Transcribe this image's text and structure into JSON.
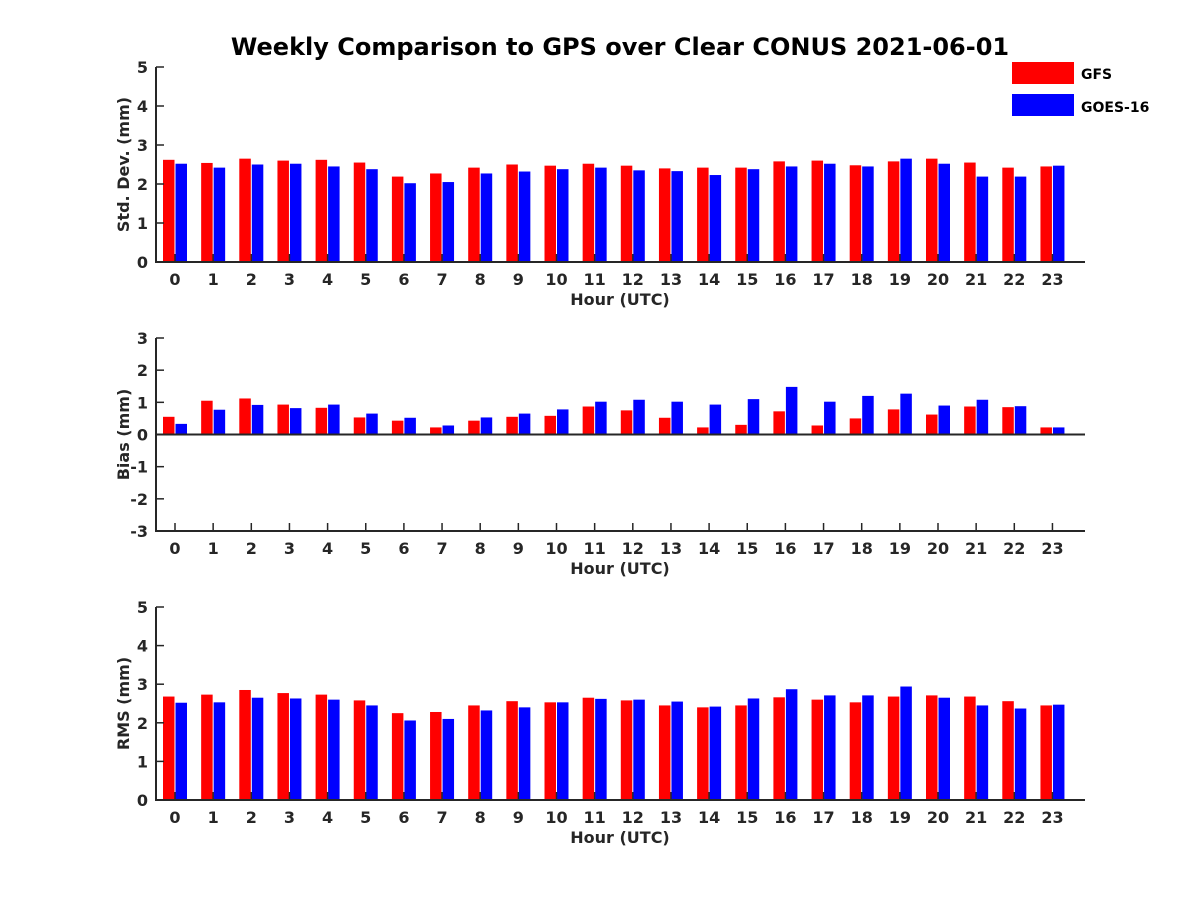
{
  "chart_data": {
    "title": "Weekly Comparison to GPS over Clear CONUS 2021-06-01",
    "categories": [
      "0",
      "1",
      "2",
      "3",
      "4",
      "5",
      "6",
      "7",
      "8",
      "9",
      "10",
      "11",
      "12",
      "13",
      "14",
      "15",
      "16",
      "17",
      "18",
      "19",
      "20",
      "21",
      "22",
      "23"
    ],
    "legend": [
      {
        "name": "GFS",
        "color": "#ff0000"
      },
      {
        "name": "GOES-16",
        "color": "#0000ff"
      }
    ],
    "legend_position": "top-right",
    "panels": [
      {
        "type": "bar",
        "xlabel": "Hour (UTC)",
        "ylabel": "Std. Dev. (mm)",
        "ylim": [
          0,
          5
        ],
        "yticks": [
          "0",
          "1",
          "2",
          "3",
          "4",
          "5"
        ],
        "series": [
          {
            "name": "GFS",
            "color": "#ff0000",
            "values": [
              2.62,
              2.54,
              2.65,
              2.6,
              2.62,
              2.55,
              2.19,
              2.27,
              2.42,
              2.5,
              2.47,
              2.52,
              2.47,
              2.4,
              2.42,
              2.42,
              2.58,
              2.6,
              2.48,
              2.58,
              2.65,
              2.55,
              2.42,
              2.45
            ]
          },
          {
            "name": "GOES-16",
            "color": "#0000ff",
            "values": [
              2.52,
              2.42,
              2.5,
              2.52,
              2.45,
              2.38,
              2.02,
              2.05,
              2.27,
              2.32,
              2.38,
              2.42,
              2.35,
              2.33,
              2.23,
              2.38,
              2.45,
              2.52,
              2.45,
              2.65,
              2.52,
              2.19,
              2.19,
              2.47
            ]
          }
        ]
      },
      {
        "type": "bar",
        "xlabel": "Hour (UTC)",
        "ylabel": "Bias (mm)",
        "ylim": [
          -3,
          3
        ],
        "yticks": [
          "-3",
          "-2",
          "-1",
          "0",
          "1",
          "2",
          "3"
        ],
        "series": [
          {
            "name": "GFS",
            "color": "#ff0000",
            "values": [
              0.55,
              1.05,
              1.12,
              0.93,
              0.83,
              0.53,
              0.43,
              0.22,
              0.43,
              0.55,
              0.58,
              0.87,
              0.75,
              0.52,
              0.22,
              0.3,
              0.72,
              0.28,
              0.5,
              0.78,
              0.62,
              0.87,
              0.85,
              0.22
            ]
          },
          {
            "name": "GOES-16",
            "color": "#0000ff",
            "values": [
              0.33,
              0.77,
              0.92,
              0.82,
              0.93,
              0.65,
              0.52,
              0.28,
              0.53,
              0.65,
              0.78,
              1.02,
              1.08,
              1.02,
              0.93,
              1.1,
              1.48,
              1.02,
              1.2,
              1.27,
              0.9,
              1.08,
              0.88,
              0.22
            ]
          }
        ]
      },
      {
        "type": "bar",
        "xlabel": "Hour (UTC)",
        "ylabel": "RMS (mm)",
        "ylim": [
          0,
          5
        ],
        "yticks": [
          "0",
          "1",
          "2",
          "3",
          "4",
          "5"
        ],
        "series": [
          {
            "name": "GFS",
            "color": "#ff0000",
            "values": [
              2.68,
              2.73,
              2.85,
              2.77,
              2.73,
              2.58,
              2.25,
              2.28,
              2.45,
              2.56,
              2.53,
              2.65,
              2.58,
              2.45,
              2.4,
              2.45,
              2.66,
              2.6,
              2.53,
              2.68,
              2.71,
              2.68,
              2.56,
              2.45
            ]
          },
          {
            "name": "GOES-16",
            "color": "#0000ff",
            "values": [
              2.52,
              2.53,
              2.65,
              2.63,
              2.6,
              2.45,
              2.06,
              2.1,
              2.32,
              2.4,
              2.53,
              2.62,
              2.6,
              2.55,
              2.42,
              2.63,
              2.87,
              2.71,
              2.71,
              2.94,
              2.65,
              2.45,
              2.37,
              2.47
            ]
          }
        ]
      }
    ]
  }
}
